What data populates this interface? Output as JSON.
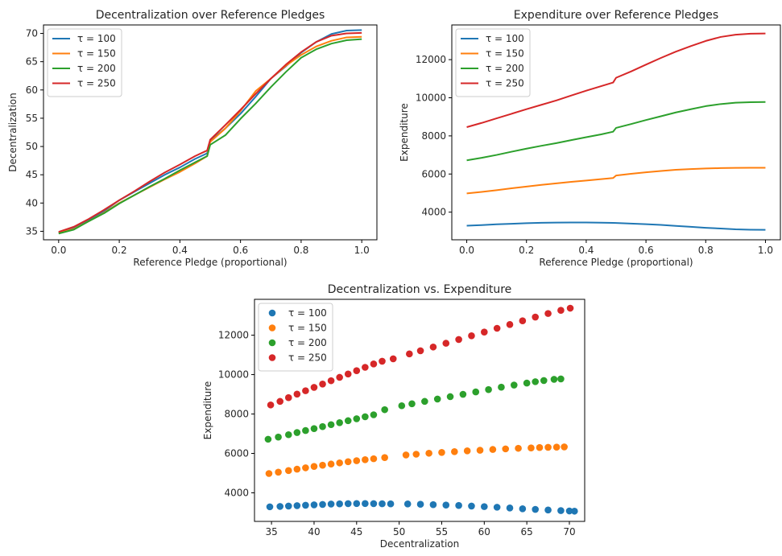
{
  "colors": {
    "tau100": "#1f77b4",
    "tau150": "#ff7f0e",
    "tau200": "#2ca02c",
    "tau250": "#d62728"
  },
  "chart_data": [
    {
      "type": "line",
      "title": "Decentralization over Reference Pledges",
      "xlabel": "Reference Pledge (proportional)",
      "ylabel": "Decentralization",
      "xlim": [
        -0.05,
        1.05
      ],
      "ylim": [
        33.5,
        71.5
      ],
      "xticks": [
        0.0,
        0.2,
        0.4,
        0.6,
        0.8,
        1.0
      ],
      "xtick_labels": [
        "0.0",
        "0.2",
        "0.4",
        "0.6",
        "0.8",
        "1.0"
      ],
      "yticks": [
        35,
        40,
        45,
        50,
        55,
        60,
        65,
        70
      ],
      "ytick_labels": [
        "35",
        "40",
        "45",
        "50",
        "55",
        "60",
        "65",
        "70"
      ],
      "legend_position": "upper-left",
      "x": [
        0.0,
        0.05,
        0.1,
        0.15,
        0.2,
        0.25,
        0.3,
        0.35,
        0.4,
        0.45,
        0.49,
        0.5,
        0.55,
        0.6,
        0.65,
        0.7,
        0.75,
        0.8,
        0.85,
        0.9,
        0.95,
        1.0
      ],
      "series": [
        {
          "name": "τ = 100",
          "color_key": "tau100",
          "values": [
            34.8,
            35.6,
            37.0,
            38.6,
            40.5,
            42.0,
            43.5,
            45.0,
            46.3,
            47.8,
            48.8,
            51.0,
            53.2,
            55.8,
            58.8,
            62.0,
            64.2,
            66.6,
            68.5,
            69.9,
            70.5,
            70.6
          ]
        },
        {
          "name": "τ = 150",
          "color_key": "tau150",
          "values": [
            34.7,
            35.4,
            36.8,
            38.3,
            40.0,
            41.4,
            42.8,
            44.2,
            45.5,
            47.0,
            48.3,
            50.8,
            53.2,
            56.3,
            59.8,
            62.0,
            64.3,
            66.2,
            67.7,
            68.7,
            69.3,
            69.4
          ]
        },
        {
          "name": "τ = 200",
          "color_key": "tau200",
          "values": [
            34.6,
            35.3,
            36.8,
            38.2,
            39.9,
            41.4,
            42.9,
            44.3,
            45.8,
            47.2,
            48.3,
            50.3,
            52.0,
            54.9,
            57.6,
            60.5,
            63.2,
            65.7,
            67.2,
            68.2,
            68.8,
            69.0
          ]
        },
        {
          "name": "τ = 250",
          "color_key": "tau250",
          "values": [
            34.9,
            35.8,
            37.2,
            38.8,
            40.5,
            42.1,
            43.8,
            45.4,
            46.8,
            48.3,
            49.3,
            51.2,
            53.8,
            56.5,
            59.3,
            62.0,
            64.5,
            66.7,
            68.5,
            69.6,
            70.0,
            70.1
          ]
        }
      ]
    },
    {
      "type": "line",
      "title": "Expenditure over Reference Pledges",
      "xlabel": "Reference Pledge (proportional)",
      "ylabel": "Expenditure",
      "xlim": [
        -0.05,
        1.05
      ],
      "ylim": [
        2550,
        13820
      ],
      "xticks": [
        0.0,
        0.2,
        0.4,
        0.6,
        0.8,
        1.0
      ],
      "xtick_labels": [
        "0.0",
        "0.2",
        "0.4",
        "0.6",
        "0.8",
        "1.0"
      ],
      "yticks": [
        4000,
        6000,
        8000,
        10000,
        12000
      ],
      "ytick_labels": [
        "4000",
        "6000",
        "8000",
        "10000",
        "12000"
      ],
      "legend_position": "upper-left",
      "x": [
        0.0,
        0.05,
        0.1,
        0.15,
        0.2,
        0.25,
        0.3,
        0.35,
        0.4,
        0.45,
        0.49,
        0.5,
        0.55,
        0.6,
        0.65,
        0.7,
        0.75,
        0.8,
        0.85,
        0.9,
        0.95,
        1.0
      ],
      "series": [
        {
          "name": "τ = 100",
          "color_key": "tau100",
          "values": [
            3290,
            3320,
            3360,
            3390,
            3420,
            3440,
            3450,
            3455,
            3455,
            3445,
            3435,
            3430,
            3400,
            3370,
            3330,
            3280,
            3230,
            3180,
            3140,
            3100,
            3080,
            3070
          ]
        },
        {
          "name": "τ = 150",
          "color_key": "tau150",
          "values": [
            4980,
            5060,
            5150,
            5250,
            5340,
            5430,
            5510,
            5590,
            5660,
            5730,
            5790,
            5920,
            6010,
            6090,
            6160,
            6220,
            6260,
            6290,
            6310,
            6320,
            6330,
            6330
          ]
        },
        {
          "name": "τ = 200",
          "color_key": "tau200",
          "values": [
            6720,
            6850,
            7000,
            7170,
            7330,
            7480,
            7620,
            7780,
            7930,
            8080,
            8220,
            8420,
            8620,
            8830,
            9030,
            9230,
            9400,
            9560,
            9670,
            9740,
            9770,
            9780
          ]
        },
        {
          "name": "τ = 250",
          "color_key": "tau250",
          "values": [
            8460,
            8680,
            8920,
            9160,
            9400,
            9630,
            9860,
            10120,
            10370,
            10610,
            10800,
            11050,
            11380,
            11740,
            12090,
            12420,
            12710,
            12980,
            13190,
            13310,
            13360,
            13370
          ]
        }
      ]
    },
    {
      "type": "scatter",
      "title": "Decentralization vs. Expenditure",
      "xlabel": "Decentralization",
      "ylabel": "Expenditure",
      "xlim": [
        33.0,
        71.8
      ],
      "ylim": [
        2550,
        13820
      ],
      "xticks": [
        35,
        40,
        45,
        50,
        55,
        60,
        65,
        70
      ],
      "xtick_labels": [
        "35",
        "40",
        "45",
        "50",
        "55",
        "60",
        "65",
        "70"
      ],
      "yticks": [
        4000,
        6000,
        8000,
        10000,
        12000
      ],
      "ytick_labels": [
        "4000",
        "6000",
        "8000",
        "10000",
        "12000"
      ],
      "legend_position": "upper-left",
      "series": [
        {
          "name": "τ = 100",
          "color_key": "tau100",
          "x": [
            34.8,
            36.0,
            37.0,
            38.0,
            39.0,
            40.0,
            41.0,
            42.0,
            43.0,
            44.0,
            45.0,
            46.0,
            47.0,
            48.0,
            49.0,
            51.0,
            52.5,
            54.0,
            55.5,
            57.0,
            58.5,
            60.0,
            61.5,
            63.0,
            64.5,
            66.0,
            67.5,
            69.0,
            70.0,
            70.6
          ],
          "y": [
            3290,
            3310,
            3330,
            3350,
            3370,
            3390,
            3410,
            3430,
            3440,
            3450,
            3455,
            3455,
            3450,
            3445,
            3440,
            3435,
            3420,
            3400,
            3380,
            3360,
            3330,
            3300,
            3270,
            3230,
            3190,
            3160,
            3130,
            3100,
            3080,
            3070
          ]
        },
        {
          "name": "τ = 150",
          "color_key": "tau150",
          "x": [
            34.7,
            35.8,
            37.0,
            38.0,
            39.0,
            40.0,
            41.0,
            42.0,
            43.0,
            44.0,
            45.0,
            46.0,
            47.0,
            48.3,
            50.8,
            52.0,
            53.5,
            55.0,
            56.5,
            58.0,
            59.5,
            61.0,
            62.5,
            64.0,
            65.5,
            66.5,
            67.5,
            68.5,
            69.4
          ],
          "y": [
            4980,
            5050,
            5130,
            5200,
            5270,
            5340,
            5400,
            5460,
            5520,
            5580,
            5630,
            5680,
            5730,
            5790,
            5920,
            5960,
            6010,
            6050,
            6090,
            6130,
            6160,
            6200,
            6230,
            6260,
            6280,
            6300,
            6310,
            6320,
            6330
          ]
        },
        {
          "name": "τ = 200",
          "color_key": "tau200",
          "x": [
            34.6,
            35.8,
            37.0,
            38.0,
            39.0,
            40.0,
            41.0,
            42.0,
            43.0,
            44.0,
            45.0,
            46.0,
            47.0,
            48.3,
            50.3,
            51.5,
            53.0,
            54.5,
            56.0,
            57.5,
            59.0,
            60.5,
            62.0,
            63.5,
            65.0,
            66.0,
            67.0,
            68.2,
            69.0
          ],
          "y": [
            6720,
            6830,
            6950,
            7060,
            7160,
            7260,
            7360,
            7460,
            7560,
            7660,
            7760,
            7860,
            7960,
            8220,
            8420,
            8520,
            8640,
            8760,
            8880,
            9000,
            9120,
            9240,
            9360,
            9470,
            9570,
            9640,
            9700,
            9760,
            9780
          ]
        },
        {
          "name": "τ = 250",
          "color_key": "tau250",
          "x": [
            34.9,
            36.0,
            37.0,
            38.0,
            39.0,
            40.0,
            41.0,
            42.0,
            43.0,
            44.0,
            45.0,
            46.0,
            47.0,
            48.0,
            49.3,
            51.2,
            52.5,
            54.0,
            55.5,
            57.0,
            58.5,
            60.0,
            61.5,
            63.0,
            64.5,
            66.0,
            67.5,
            69.0,
            70.1
          ],
          "y": [
            8460,
            8640,
            8830,
            9010,
            9180,
            9350,
            9520,
            9690,
            9860,
            10030,
            10200,
            10370,
            10540,
            10680,
            10800,
            11050,
            11210,
            11400,
            11590,
            11780,
            11970,
            12160,
            12350,
            12540,
            12730,
            12920,
            13100,
            13260,
            13370
          ]
        }
      ]
    }
  ]
}
